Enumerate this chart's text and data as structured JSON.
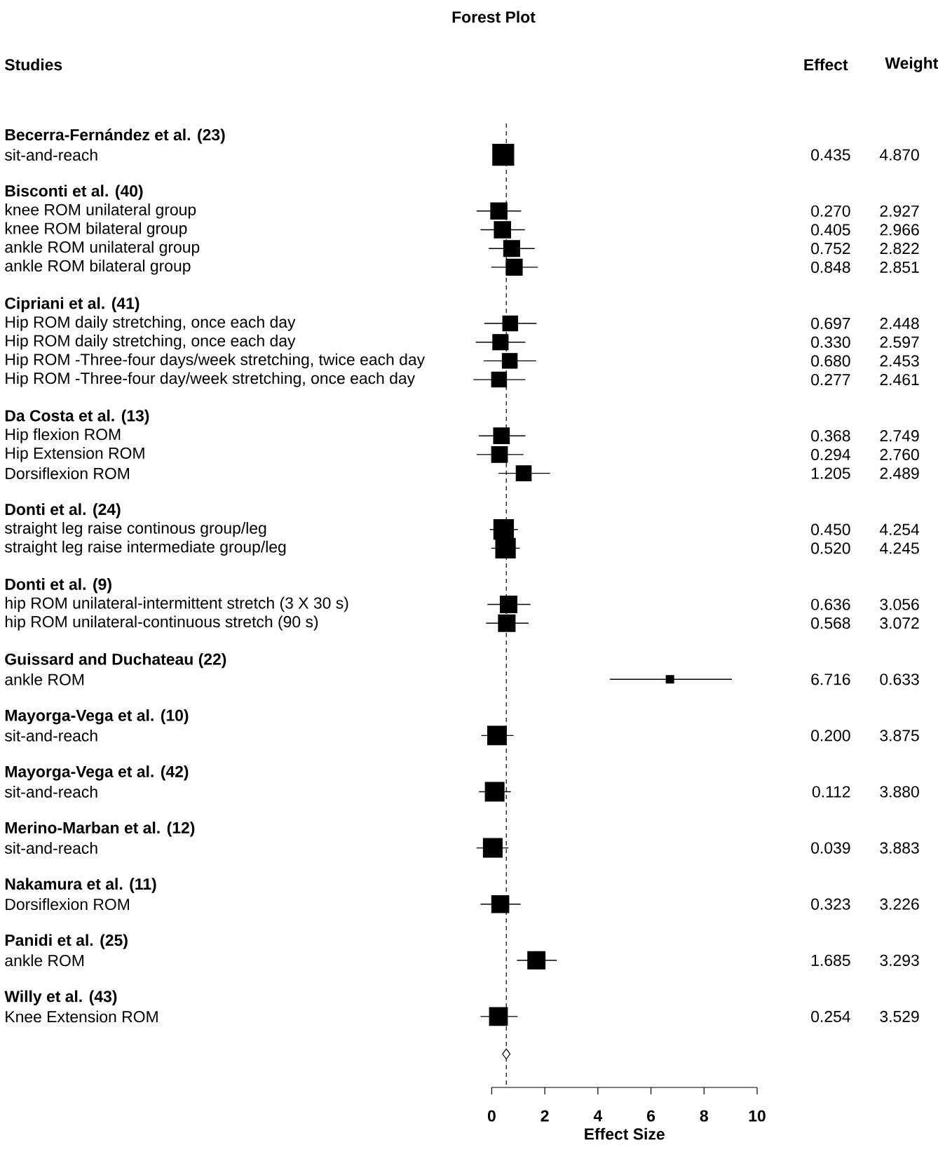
{
  "chart_data": {
    "type": "bubble",
    "orientation": "horizontal",
    "title": "Forest Plot",
    "ylabel": "Studies",
    "xlabel": "Effect Size",
    "annotations": [
      "Effect",
      "Weight",
      "4.870",
      "2.927",
      "2.966",
      "2.822",
      "2.851",
      "2.448",
      "2.597",
      "2.453",
      "2.461",
      "2.749",
      "2.760",
      "2.489",
      "4.254",
      "4.245",
      "3.056",
      "3.072",
      "0.633",
      "3.875",
      "3.880",
      "3.883",
      "3.226",
      "3.293",
      "3.529"
    ],
    "categories": [
      "Becerra-Fernández et al. (23)",
      "sit-and-reach",
      null,
      "Bisconti et al. (40)",
      "knee ROM unilateral group",
      "knee ROM bilateral group",
      "ankle ROM unilateral group",
      "ankle ROM bilateral group",
      null,
      "Cipriani et al. (41)",
      "Hip ROM daily stretching, once each day",
      "Hip ROM daily stretching, once each day",
      "Hip ROM -Three-four days/week stretching, twice each day",
      "Hip ROM -Three-four day/week stretching, once each day",
      null,
      "Da Costa et al. (13)",
      "Hip flexion ROM",
      "Hip Extension ROM",
      "Dorsiflexion ROM",
      null,
      "Donti et al. (24)",
      "straight leg raise continous group/leg",
      "straight leg raise intermediate group/leg",
      null,
      "Donti et al. (9)",
      "hip ROM unilateral-intermittent stretch (3 X 30 s)",
      "hip ROM unilateral-continuous stretch (90 s)",
      null,
      "Guissard and Duchateau (22)",
      "ankle ROM",
      null,
      "Mayorga-Vega et al. (10)",
      "sit-and-reach",
      null,
      "Mayorga-Vega et al. (42)",
      "sit-and-reach",
      null,
      "Merino-Marban et al. (12)",
      "sit-and-reach",
      null,
      "Nakamura et al. (11)",
      "Dorsiflexion ROM",
      null,
      "Panidi et al. (25)",
      "ankle ROM",
      null,
      "Willy et al. (43)",
      "Knee Extension ROM",
      null,
      null
    ],
    "series": [
      {
        "marker": "square",
        "color": "#000000",
        "values": [
          null,
          0.435,
          null,
          null,
          0.27,
          0.405,
          0.752,
          0.848,
          null,
          null,
          0.697,
          0.33,
          0.68,
          0.277,
          null,
          null,
          0.368,
          0.294,
          1.205,
          null,
          null,
          0.45,
          0.52,
          null,
          null,
          0.636,
          0.568,
          null,
          null,
          6.716,
          null,
          null,
          0.2,
          null,
          null,
          0.112,
          null,
          null,
          0.039,
          null,
          null,
          0.323,
          null,
          null,
          1.685,
          null,
          null,
          0.254,
          null,
          null
        ],
        "value_labels": [
          null,
          "0.435",
          null,
          null,
          "0.270",
          "0.405",
          "0.752",
          "0.848",
          null,
          null,
          "0.697",
          "0.330",
          "0.680",
          "0.277",
          null,
          null,
          "0.368",
          "0.294",
          "1.205",
          null,
          null,
          "0.450",
          "0.520",
          null,
          null,
          "0.636",
          "0.568",
          null,
          null,
          "6.716",
          null,
          null,
          "0.200",
          null,
          null,
          "0.112",
          null,
          null,
          "0.039",
          null,
          null,
          "0.323",
          null,
          null,
          "1.685",
          null,
          null,
          "0.254",
          null,
          null
        ],
        "errors": [
          null,
          [
            0.06,
            0.81
          ],
          null,
          null,
          [
            -0.57,
            1.11
          ],
          [
            -0.42,
            1.25
          ],
          [
            -0.11,
            1.62
          ],
          [
            -0.02,
            1.74
          ],
          null,
          null,
          [
            -0.28,
            1.69
          ],
          [
            -0.6,
            1.27
          ],
          [
            -0.3,
            1.67
          ],
          [
            -0.69,
            1.27
          ],
          null,
          null,
          [
            -0.49,
            1.27
          ],
          [
            -0.57,
            1.2
          ],
          [
            0.26,
            2.2
          ],
          null,
          null,
          [
            -0.07,
            0.98
          ],
          [
            -0.02,
            1.06
          ],
          null,
          null,
          [
            -0.16,
            1.46
          ],
          [
            -0.21,
            1.39
          ],
          null,
          null,
          [
            4.45,
            9.05
          ],
          null,
          null,
          [
            -0.39,
            0.82
          ],
          null,
          null,
          [
            -0.48,
            0.72
          ],
          null,
          null,
          [
            -0.57,
            0.63
          ],
          null,
          null,
          [
            -0.42,
            1.09
          ],
          null,
          null,
          [
            0.95,
            2.45
          ],
          null,
          null,
          [
            -0.42,
            0.98
          ],
          null,
          null
        ],
        "sizes": [
          null,
          1,
          null,
          null,
          0.601,
          0.609,
          0.579,
          0.585,
          null,
          null,
          0.503,
          0.533,
          0.504,
          0.505,
          null,
          null,
          0.564,
          0.567,
          0.511,
          null,
          null,
          0.874,
          0.872,
          null,
          null,
          0.628,
          0.631,
          null,
          null,
          0.13,
          null,
          null,
          0.796,
          null,
          null,
          0.797,
          null,
          null,
          0.797,
          null,
          null,
          0.662,
          null,
          null,
          0.676,
          null,
          null,
          0.725,
          null,
          null
        ]
      },
      {
        "marker": "diamond",
        "color": "#000000",
        "values": [
          null,
          null,
          null,
          null,
          null,
          null,
          null,
          null,
          null,
          null,
          null,
          null,
          null,
          null,
          null,
          null,
          null,
          null,
          null,
          null,
          null,
          null,
          null,
          null,
          null,
          null,
          null,
          null,
          null,
          null,
          null,
          null,
          null,
          null,
          null,
          null,
          null,
          null,
          null,
          null,
          null,
          null,
          null,
          null,
          null,
          null,
          null,
          null,
          null,
          0.55
        ]
      }
    ],
    "xlim": [
      0,
      10
    ],
    "xticks": [
      0,
      2,
      4,
      6,
      8,
      10
    ],
    "ref_lines": [
      {
        "axis": "x",
        "value": 0.55,
        "line_style": "dashed"
      }
    ]
  }
}
